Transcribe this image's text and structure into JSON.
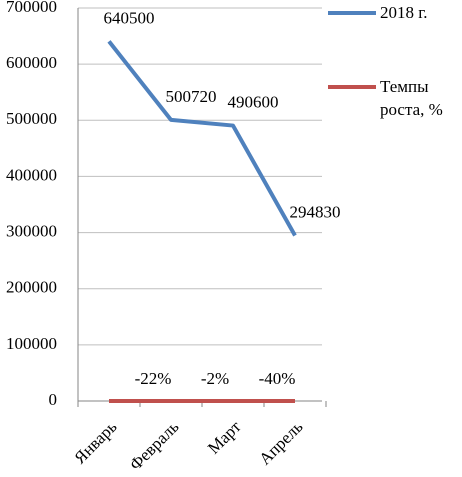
{
  "chart_data": {
    "type": "line",
    "categories": [
      "Январь",
      "Февраль",
      "Март",
      "Апрель"
    ],
    "series": [
      {
        "name": "2018 г.",
        "color": "#4f81bd",
        "values": [
          640500,
          500720,
          490600,
          294830
        ]
      },
      {
        "name": "Темпы роста, %",
        "color": "#c0504d",
        "values": [
          0,
          -0.22,
          -0.02,
          -0.4
        ],
        "value_labels": [
          null,
          "-22%",
          "-2%",
          "-40%"
        ]
      }
    ],
    "ylim": [
      0,
      700000
    ],
    "yticks": [
      0,
      100000,
      200000,
      300000,
      400000,
      500000,
      600000,
      700000
    ],
    "grid": true,
    "legend": "right"
  }
}
